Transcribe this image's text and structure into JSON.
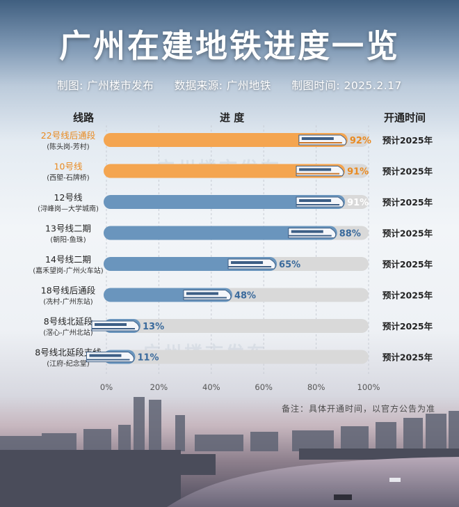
{
  "header": {
    "title": "广州在建地铁进度一览",
    "source_items": [
      "制图: 广州楼市发布",
      "数据来源: 广州地铁",
      "制图时间: 2025.2.17"
    ]
  },
  "columns": {
    "line": "线路",
    "progress": "进 度",
    "open": "开通时间"
  },
  "note": "备注：具体开通时间，以官方公告为准",
  "watermark": "广州楼市发布",
  "colors": {
    "highlight": "#f4a550",
    "normal": "#6a95bd",
    "track": "#d9d9d9",
    "highlight_text": "#e98a20",
    "normal_text": "#3a6a9c"
  },
  "chart_data": {
    "type": "bar",
    "orientation": "horizontal",
    "xlim": [
      0,
      100
    ],
    "x_ticks": [
      "0%",
      "20%",
      "40%",
      "60%",
      "80%",
      "100%"
    ],
    "rows": [
      {
        "name": "22号线后通段",
        "sub": "(陈头岗-芳村)",
        "value": 92,
        "label": "92%",
        "open": "预计2025年",
        "highlight": true
      },
      {
        "name": "10号线",
        "sub": "(西塱-石牌桥)",
        "value": 91,
        "label": "91%",
        "open": "预计2025年",
        "highlight": true
      },
      {
        "name": "12号线",
        "sub": "(浔峰岗—大学城南)",
        "value": 91,
        "label": "91%",
        "open": "预计2025年",
        "highlight": false
      },
      {
        "name": "13号线二期",
        "sub": "(朝阳-鱼珠)",
        "value": 88,
        "label": "88%",
        "open": "预计2025年",
        "highlight": false
      },
      {
        "name": "14号线二期",
        "sub": "(嘉禾望岗-广州火车站)",
        "value": 65,
        "label": "65%",
        "open": "预计2025年",
        "highlight": false
      },
      {
        "name": "18号线后通段",
        "sub": "(冼村-广州东站)",
        "value": 48,
        "label": "48%",
        "open": "预计2025年",
        "highlight": false
      },
      {
        "name": "8号线北延段",
        "sub": "(滘心-广州北站)",
        "value": 13,
        "label": "13%",
        "open": "预计2025年",
        "highlight": false
      },
      {
        "name": "8号线北延段支线",
        "sub": "(江府-纪念堂)",
        "value": 11,
        "label": "11%",
        "open": "预计2025年",
        "highlight": false
      }
    ]
  }
}
